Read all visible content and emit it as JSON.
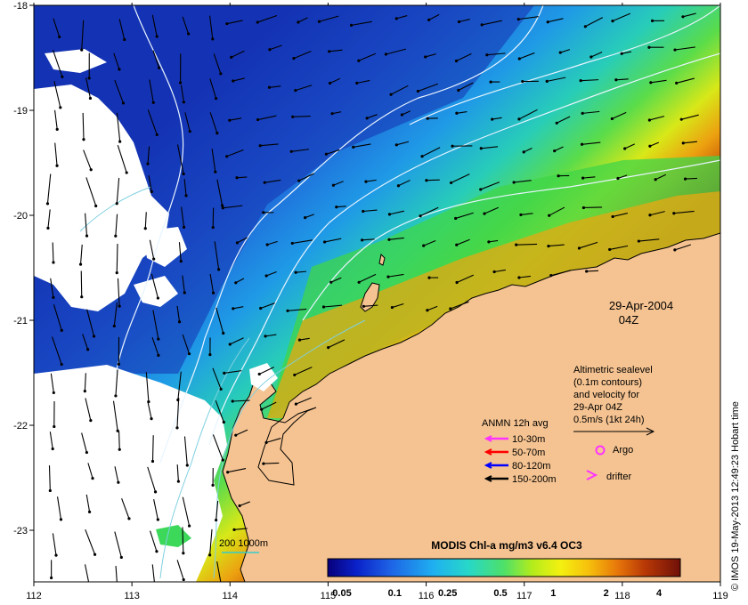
{
  "map": {
    "date_line1": "29-Apr-2004",
    "date_line2": "04Z",
    "credit": "© IMOS 19-May-2013 12:49:23 Hobart time"
  },
  "axes": {
    "x_ticks": [
      "112",
      "113",
      "114",
      "115",
      "116",
      "117",
      "118",
      "119"
    ],
    "y_ticks": [
      "-18",
      "-19",
      "-20",
      "-21",
      "-22",
      "-23"
    ]
  },
  "altimetry_note": {
    "lines": [
      "Altimetric sealevel",
      "(0.1m contours)",
      "and velocity for",
      "29-Apr 04Z",
      "0.5m/s (1kt 24h)"
    ]
  },
  "anmn_legend": {
    "title": "ANMN 12h avg",
    "items": [
      {
        "label": "10-30m",
        "color": "#ff33ff"
      },
      {
        "label": "50-70m",
        "color": "#ff0000"
      },
      {
        "label": "80-120m",
        "color": "#0000ff"
      },
      {
        "label": "150-200m",
        "color": "#000000"
      }
    ],
    "argo_label": "Argo",
    "drifter_label": "drifter"
  },
  "bathy_legend": {
    "label": "200  1000m",
    "color": "#33cccc"
  },
  "colorbar": {
    "title": "MODIS Chl-a mg/m3 v6.4 OC3",
    "ticks": [
      "0.05",
      "0.1",
      "0.25",
      "0.5",
      "1",
      "2",
      "4"
    ]
  },
  "colors": {
    "land": "#f5c391",
    "cloud": "#ffffff",
    "coast": "#000000",
    "contour": "#e8f4ff",
    "isobath": "#7fd0e0"
  }
}
